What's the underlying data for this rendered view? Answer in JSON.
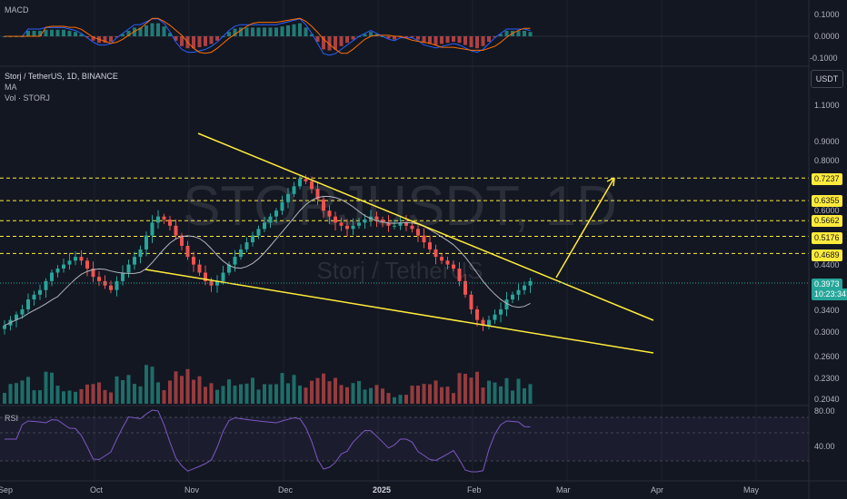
{
  "panes": {
    "macd": {
      "label": "MACD",
      "ticks": [
        "0.1000",
        "0.0000",
        "-0.1000"
      ]
    },
    "price": {
      "symbol_line": "Storj / TetherUS, 1D, BINANCE",
      "indicator_1": "MA",
      "indicator_2": "Vol · STORJ",
      "currency_button": "USDT",
      "ticks": [
        "1.1000",
        "0.9000",
        "0.8000",
        "0.6000",
        "0.4400",
        "0.3400",
        "0.3000",
        "0.2600",
        "0.2300",
        "0.2040"
      ],
      "watermark_symbol": "STORJUSDT, 1D",
      "watermark_name": "Storj / TetherUS",
      "current_price": "0.3973",
      "countdown": "10:23:34"
    },
    "rsi": {
      "label": "RSI",
      "ticks": [
        "80.00",
        "40.00"
      ]
    }
  },
  "levels": [
    {
      "price": "0.7237",
      "color": "#ffeb3b"
    },
    {
      "price": "0.6355",
      "color": "#ffeb3b"
    },
    {
      "price": "0.5662",
      "color": "#ffeb3b"
    },
    {
      "price": "0.5176",
      "color": "#ffeb3b"
    },
    {
      "price": "0.4689",
      "color": "#ffeb3b"
    }
  ],
  "time_axis": [
    "Sep",
    "Oct",
    "Nov",
    "Dec",
    "2025",
    "Feb",
    "Mar",
    "Apr",
    "May"
  ],
  "colors": {
    "up": "#26a69a",
    "down": "#ef5350",
    "pattern": "#ffeb3b",
    "ma": "#b2b5be",
    "rsi": "#7e57c2"
  },
  "chart_data": {
    "type": "candlestick",
    "pattern": "falling wedge with breakout arrow",
    "close_approx": [
      0.31,
      0.32,
      0.33,
      0.34,
      0.36,
      0.37,
      0.38,
      0.4,
      0.42,
      0.43,
      0.44,
      0.45,
      0.46,
      0.45,
      0.43,
      0.41,
      0.4,
      0.39,
      0.38,
      0.4,
      0.42,
      0.44,
      0.46,
      0.48,
      0.52,
      0.56,
      0.58,
      0.57,
      0.55,
      0.52,
      0.49,
      0.46,
      0.44,
      0.42,
      0.4,
      0.39,
      0.4,
      0.42,
      0.44,
      0.46,
      0.48,
      0.5,
      0.52,
      0.54,
      0.56,
      0.58,
      0.6,
      0.63,
      0.66,
      0.69,
      0.72,
      0.71,
      0.68,
      0.64,
      0.6,
      0.58,
      0.56,
      0.55,
      0.54,
      0.55,
      0.56,
      0.57,
      0.58,
      0.57,
      0.56,
      0.55,
      0.55,
      0.56,
      0.55,
      0.54,
      0.52,
      0.5,
      0.48,
      0.46,
      0.45,
      0.44,
      0.43,
      0.4,
      0.37,
      0.34,
      0.32,
      0.31,
      0.32,
      0.33,
      0.34,
      0.36,
      0.37,
      0.38,
      0.39,
      0.4
    ]
  }
}
